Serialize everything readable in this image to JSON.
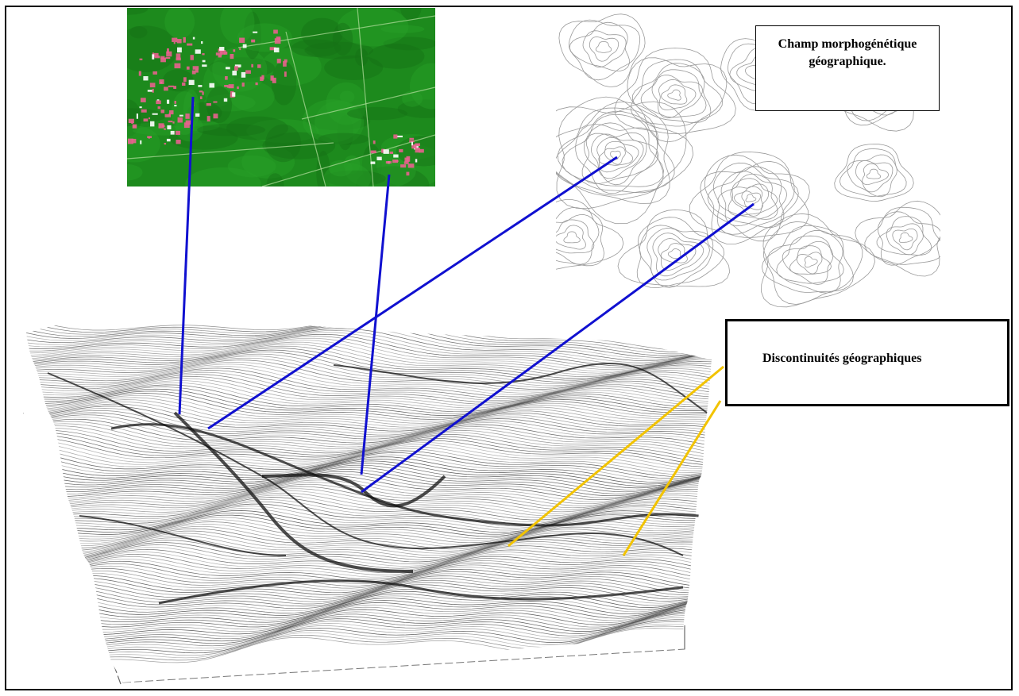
{
  "labels": {
    "champ_line1": "Champ morphogénétique",
    "champ_line2": "géographique.",
    "discontinuites": "Discontinuités géographiques"
  },
  "colors": {
    "connector_blue": "#1010d0",
    "connector_yellow": "#f2c300",
    "satellite_green": "#1d8a1d",
    "satellite_urban": "#e8628e",
    "contour_gray": "#9a9a9a",
    "surface_ink": "#222222"
  },
  "icons": {
    "satellite": "satellite-image",
    "contours": "contour-map",
    "surface": "3d-surface"
  }
}
